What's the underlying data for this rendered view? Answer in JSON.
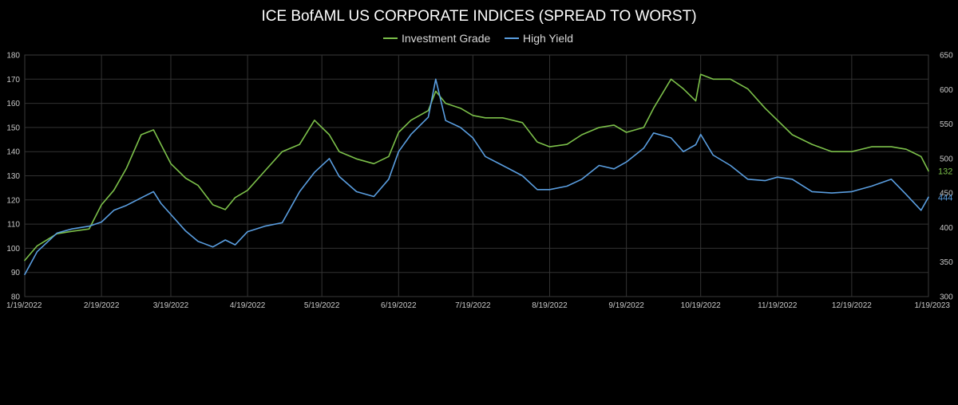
{
  "chart_data": {
    "type": "line",
    "title": "ICE BofAML US CORPORATE INDICES (SPREAD TO WORST)",
    "legend_position": "top-center",
    "grid": true,
    "x_ticks": [
      "1/19/2022",
      "2/19/2022",
      "3/19/2022",
      "4/19/2022",
      "5/19/2022",
      "6/19/2022",
      "7/19/2022",
      "8/19/2022",
      "9/19/2022",
      "10/19/2022",
      "11/19/2022",
      "12/19/2022",
      "1/19/2023"
    ],
    "x_range": [
      "1/19/2022",
      "1/19/2023"
    ],
    "y_left": {
      "min": 80,
      "max": 180,
      "ticks": [
        "80",
        "90",
        "100",
        "110",
        "120",
        "130",
        "140",
        "150",
        "160",
        "170",
        "180"
      ]
    },
    "y_right": {
      "min": 300,
      "max": 650,
      "ticks": [
        "300",
        "350",
        "400",
        "450",
        "500",
        "550",
        "600",
        "650"
      ]
    },
    "series": [
      {
        "name": "Investment Grade",
        "axis": "left",
        "color": "#7cc04a",
        "end_label": "132",
        "x": [
          "1/19/2022",
          "1/24/2022",
          "2/1/2022",
          "2/7/2022",
          "2/14/2022",
          "2/19/2022",
          "2/24/2022",
          "3/1/2022",
          "3/7/2022",
          "3/12/2022",
          "3/15/2022",
          "3/19/2022",
          "3/25/2022",
          "3/30/2022",
          "4/5/2022",
          "4/10/2022",
          "4/14/2022",
          "4/19/2022",
          "4/26/2022",
          "5/3/2022",
          "5/10/2022",
          "5/16/2022",
          "5/22/2022",
          "5/26/2022",
          "6/2/2022",
          "6/9/2022",
          "6/15/2022",
          "6/19/2022",
          "6/24/2022",
          "7/1/2022",
          "7/4/2022",
          "7/8/2022",
          "7/14/2022",
          "7/19/2022",
          "7/24/2022",
          "7/31/2022",
          "8/8/2022",
          "8/14/2022",
          "8/19/2022",
          "8/26/2022",
          "9/1/2022",
          "9/8/2022",
          "9/14/2022",
          "9/19/2022",
          "9/26/2022",
          "9/30/2022",
          "10/7/2022",
          "10/12/2022",
          "10/17/2022",
          "10/19/2022",
          "10/24/2022",
          "10/31/2022",
          "11/7/2022",
          "11/14/2022",
          "11/19/2022",
          "11/25/2022",
          "12/3/2022",
          "12/11/2022",
          "12/19/2022",
          "12/27/2022",
          "1/4/2023",
          "1/10/2023",
          "1/16/2023",
          "1/19/2023"
        ],
        "values": [
          95,
          101,
          106,
          107,
          108,
          118,
          124,
          133,
          147,
          149,
          143,
          135,
          129,
          126,
          118,
          116,
          121,
          124,
          132,
          140,
          143,
          153,
          147,
          140,
          137,
          135,
          138,
          148,
          153,
          157,
          165,
          160,
          158,
          155,
          154,
          154,
          152,
          144,
          142,
          143,
          147,
          150,
          151,
          148,
          150,
          158,
          170,
          166,
          161,
          172,
          170,
          170,
          166,
          158,
          153,
          147,
          143,
          140,
          140,
          142,
          142,
          141,
          138,
          132
        ]
      },
      {
        "name": "High Yield",
        "axis": "right",
        "color": "#5a9ee0",
        "end_label": "444",
        "x": [
          "1/19/2022",
          "1/24/2022",
          "2/1/2022",
          "2/7/2022",
          "2/14/2022",
          "2/19/2022",
          "2/24/2022",
          "3/1/2022",
          "3/7/2022",
          "3/12/2022",
          "3/15/2022",
          "3/19/2022",
          "3/25/2022",
          "3/30/2022",
          "4/5/2022",
          "4/10/2022",
          "4/14/2022",
          "4/19/2022",
          "4/26/2022",
          "5/3/2022",
          "5/10/2022",
          "5/16/2022",
          "5/22/2022",
          "5/26/2022",
          "6/2/2022",
          "6/9/2022",
          "6/15/2022",
          "6/19/2022",
          "6/24/2022",
          "7/1/2022",
          "7/4/2022",
          "7/8/2022",
          "7/14/2022",
          "7/19/2022",
          "7/24/2022",
          "7/31/2022",
          "8/8/2022",
          "8/14/2022",
          "8/19/2022",
          "8/26/2022",
          "9/1/2022",
          "9/8/2022",
          "9/14/2022",
          "9/19/2022",
          "9/26/2022",
          "9/30/2022",
          "10/7/2022",
          "10/12/2022",
          "10/17/2022",
          "10/19/2022",
          "10/24/2022",
          "10/31/2022",
          "11/7/2022",
          "11/14/2022",
          "11/19/2022",
          "11/25/2022",
          "12/3/2022",
          "12/11/2022",
          "12/19/2022",
          "12/27/2022",
          "1/4/2023",
          "1/10/2023",
          "1/16/2023",
          "1/19/2023"
        ],
        "values": [
          332,
          365,
          392,
          398,
          402,
          408,
          425,
          432,
          443,
          452,
          435,
          419,
          395,
          380,
          372,
          382,
          375,
          394,
          402,
          407,
          452,
          480,
          500,
          474,
          452,
          445,
          470,
          510,
          535,
          560,
          615,
          555,
          545,
          530,
          503,
          490,
          475,
          455,
          455,
          460,
          470,
          490,
          485,
          495,
          515,
          537,
          530,
          510,
          520,
          535,
          505,
          490,
          470,
          468,
          473,
          470,
          452,
          450,
          452,
          460,
          470,
          448,
          425,
          444
        ]
      }
    ]
  }
}
